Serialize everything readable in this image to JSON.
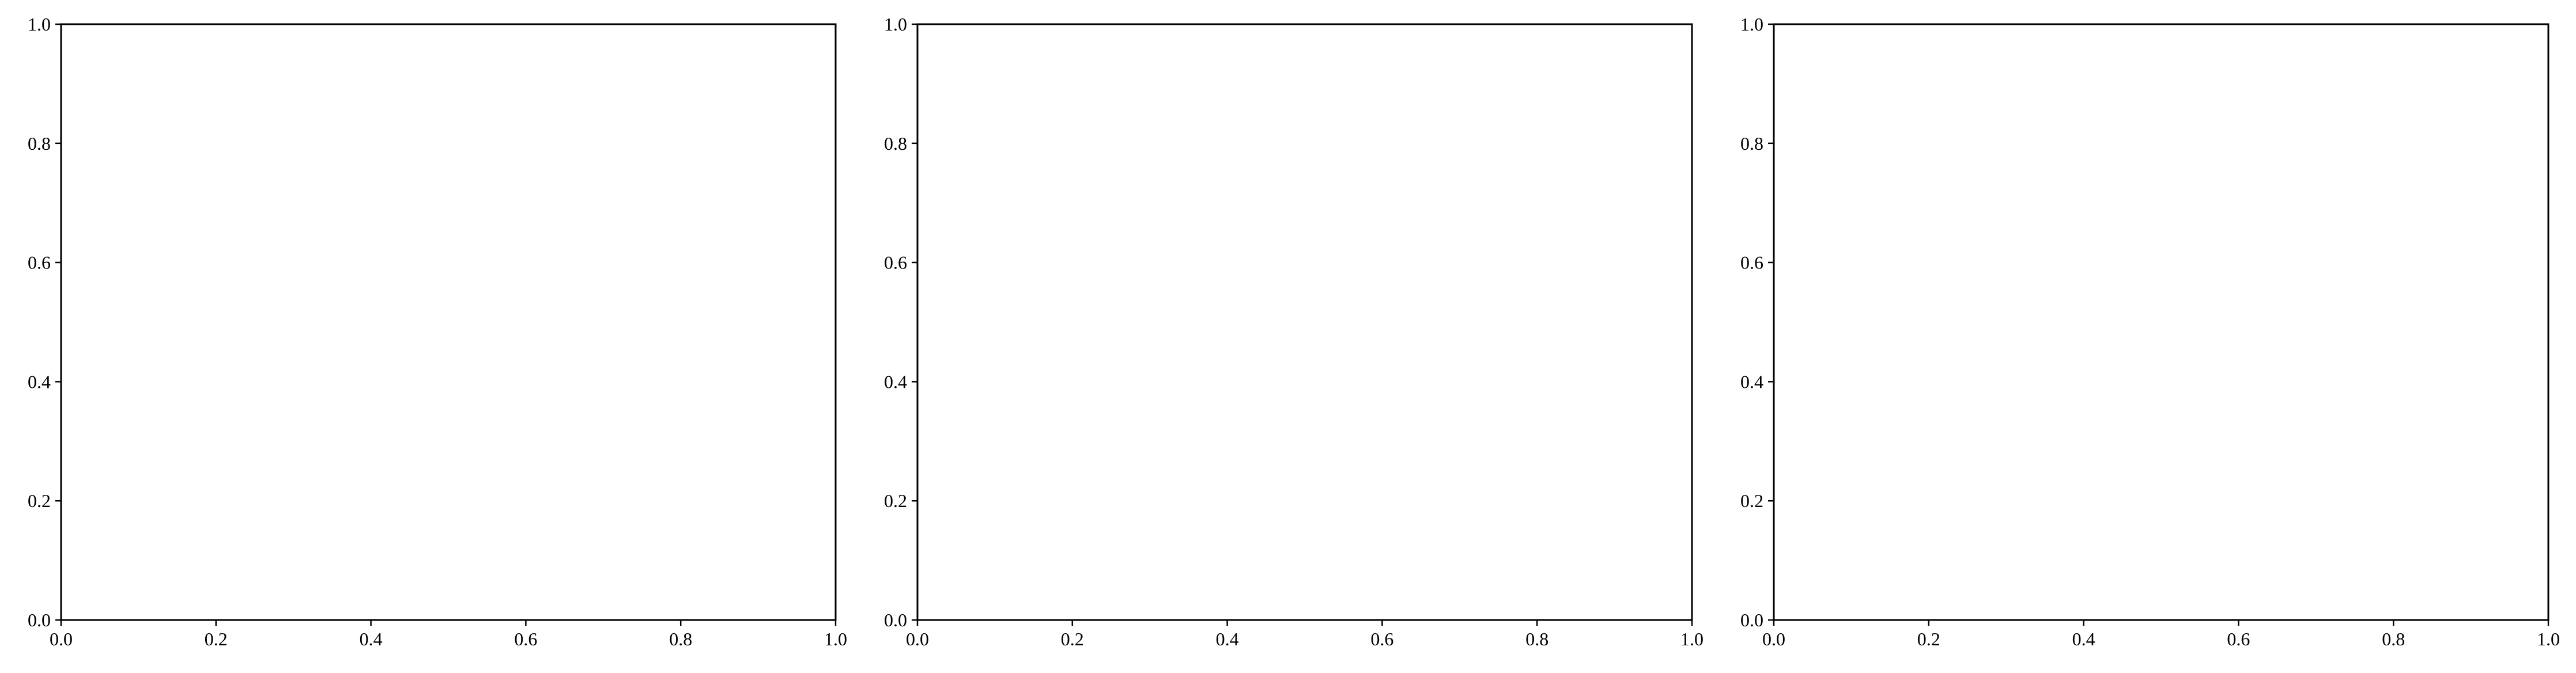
{
  "chart_data": [
    {
      "type": "line",
      "title": "",
      "xlabel": "",
      "ylabel": "",
      "xlim": [
        0.0,
        1.0
      ],
      "ylim": [
        0.0,
        1.0
      ],
      "xticks": [
        "0.0",
        "0.2",
        "0.4",
        "0.6",
        "0.8",
        "1.0"
      ],
      "yticks": [
        "0.0",
        "0.2",
        "0.4",
        "0.6",
        "0.8",
        "1.0"
      ],
      "grid": true,
      "series": []
    },
    {
      "type": "line",
      "title": "",
      "xlabel": "",
      "ylabel": "",
      "xlim": [
        0.0,
        1.0
      ],
      "ylim": [
        0.0,
        1.0
      ],
      "xticks": [
        "0.0",
        "0.2",
        "0.4",
        "0.6",
        "0.8",
        "1.0"
      ],
      "yticks": [
        "0.0",
        "0.2",
        "0.4",
        "0.6",
        "0.8",
        "1.0"
      ],
      "grid": true,
      "series": []
    },
    {
      "type": "line",
      "title": "",
      "xlabel": "",
      "ylabel": "",
      "xlim": [
        0.0,
        1.0
      ],
      "ylim": [
        0.0,
        1.0
      ],
      "xticks": [
        "0.0",
        "0.2",
        "0.4",
        "0.6",
        "0.8",
        "1.0"
      ],
      "yticks": [
        "0.0",
        "0.2",
        "0.4",
        "0.6",
        "0.8",
        "1.0"
      ],
      "grid": true,
      "series": []
    }
  ]
}
